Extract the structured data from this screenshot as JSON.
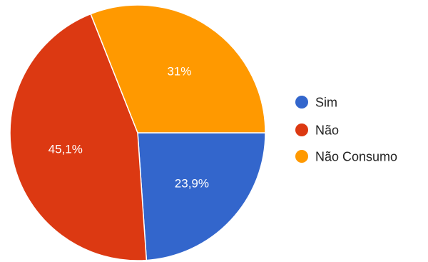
{
  "chart_data": {
    "type": "pie",
    "title": "",
    "legend_position": "right",
    "slices": [
      {
        "label": "Sim",
        "value": 23.9,
        "value_label": "23,9%",
        "color": "#3366cc"
      },
      {
        "label": "Não",
        "value": 45.1,
        "value_label": "45,1%",
        "color": "#dc3912"
      },
      {
        "label": "Não Consumo",
        "value": 31.0,
        "value_label": "31%",
        "color": "#ff9900"
      }
    ]
  }
}
